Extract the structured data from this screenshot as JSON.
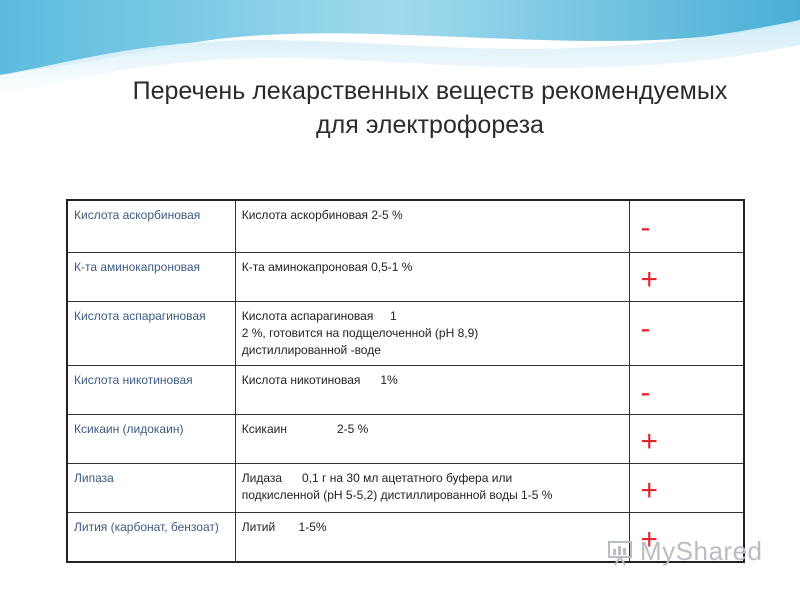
{
  "title": {
    "line1": "Перечень лекарственных веществ рекомендуемых",
    "line2": "для электрофореза"
  },
  "table": {
    "rows": [
      {
        "name": "Кислота аскорбиновая",
        "desc": [
          "Кислота аскорбиновая 2-5 %"
        ],
        "sign": "-"
      },
      {
        "name": "К-та аминокапроновая",
        "desc": [
          "К-та аминокапроновая 0,5-1 %"
        ],
        "sign": "+"
      },
      {
        "name": "Кислота аспарагиновая",
        "desc": [
          "Кислота аспарагиновая     1",
          "2 %, готовится на подщелоченной (рН 8,9)",
          "дистиллированной -воде"
        ],
        "sign": "-"
      },
      {
        "name": "Кислота никотиновая",
        "desc": [
          "Кислота никотиновая      1%"
        ],
        "sign": "-"
      },
      {
        "name": "Ксикаин (лидокаин)",
        "desc": [
          "Ксикаин               2-5 %"
        ],
        "sign": "+"
      },
      {
        "name": "Липаза",
        "desc": [
          "Лидаза      0,1 г на 30 мл ацетатного буфера или",
          "подкисленной (рН 5-5,2) дистиллированной воды 1-5 %"
        ],
        "sign": "+"
      },
      {
        "name": "Лития (карбонат, бензоат)",
        "desc": [
          "Литий       1-5%"
        ],
        "sign": "+"
      }
    ]
  },
  "logo": {
    "text": "MyShared",
    "icon": "presentation-board-icon"
  },
  "colors": {
    "sign": "#e0282c",
    "name_text": "#3d5a80",
    "wave": "#6fc3e0"
  }
}
